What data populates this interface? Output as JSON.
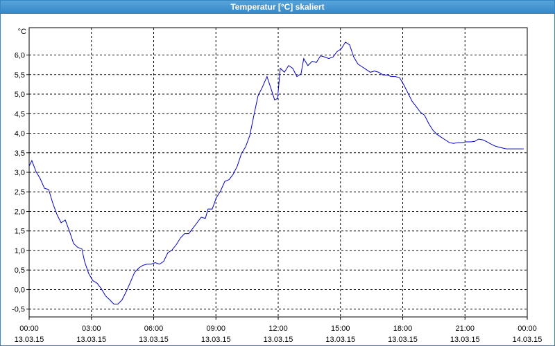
{
  "chart_data": {
    "type": "line",
    "title": "Temperatur [°C] skaliert",
    "y_unit": "°C",
    "color": "#0000c8",
    "grid": true,
    "x": [
      0,
      0.13,
      0.33,
      0.53,
      0.74,
      0.94,
      1.14,
      1.34,
      1.54,
      1.74,
      1.94,
      2.14,
      2.34,
      2.54,
      2.67,
      2.87,
      3.07,
      3.28,
      3.48,
      3.68,
      3.88,
      4.08,
      4.28,
      4.48,
      4.68,
      4.88,
      5.08,
      5.28,
      5.48,
      5.68,
      5.88,
      6.08,
      6.28,
      6.48,
      6.68,
      6.88,
      7.09,
      7.29,
      7.49,
      7.69,
      7.89,
      8.09,
      8.29,
      8.49,
      8.62,
      8.82,
      9.02,
      9.22,
      9.43,
      9.63,
      9.83,
      10.03,
      10.23,
      10.43,
      10.63,
      10.83,
      11.03,
      11.23,
      11.46,
      11.66,
      11.83,
      11.97,
      12.1,
      12.3,
      12.5,
      12.7,
      12.9,
      13.1,
      13.23,
      13.43,
      13.64,
      13.84,
      14.04,
      14.24,
      14.44,
      14.64,
      14.84,
      15.04,
      15.24,
      15.44,
      15.64,
      15.84,
      16.04,
      16.24,
      16.44,
      16.64,
      16.84,
      17.05,
      17.25,
      17.45,
      17.65,
      17.85,
      18.05,
      18.25,
      18.45,
      18.65,
      18.85,
      19.05,
      19.25,
      19.45,
      19.65,
      19.85,
      20.05,
      20.25,
      20.45,
      20.66,
      20.86,
      21.06,
      21.26,
      21.46,
      21.66,
      21.86,
      22.06,
      22.26,
      22.46,
      22.66,
      22.99,
      23.33,
      23.83
    ],
    "values": [
      3.16,
      3.3,
      3.02,
      2.84,
      2.59,
      2.56,
      2.21,
      1.92,
      1.71,
      1.78,
      1.5,
      1.18,
      1.08,
      1.04,
      0.72,
      0.41,
      0.23,
      0.16,
      0.02,
      -0.16,
      -0.26,
      -0.37,
      -0.37,
      -0.26,
      -0.05,
      0.19,
      0.44,
      0.55,
      0.62,
      0.65,
      0.65,
      0.69,
      0.65,
      0.72,
      0.94,
      1.01,
      1.15,
      1.32,
      1.43,
      1.43,
      1.57,
      1.71,
      1.85,
      1.82,
      2.06,
      2.06,
      2.35,
      2.52,
      2.77,
      2.81,
      2.95,
      3.16,
      3.48,
      3.65,
      3.94,
      4.46,
      4.96,
      5.17,
      5.45,
      5.13,
      4.85,
      4.89,
      5.66,
      5.56,
      5.73,
      5.66,
      5.45,
      5.52,
      5.91,
      5.73,
      5.84,
      5.81,
      5.98,
      5.95,
      5.91,
      5.95,
      6.09,
      6.16,
      6.33,
      6.26,
      5.95,
      5.77,
      5.7,
      5.63,
      5.56,
      5.59,
      5.56,
      5.49,
      5.49,
      5.45,
      5.45,
      5.42,
      5.24,
      5.03,
      4.82,
      4.68,
      4.54,
      4.46,
      4.25,
      4.08,
      3.97,
      3.9,
      3.83,
      3.76,
      3.74,
      3.76,
      3.76,
      3.78,
      3.78,
      3.79,
      3.85,
      3.83,
      3.78,
      3.72,
      3.67,
      3.64,
      3.6,
      3.6,
      3.6
    ],
    "xlim": [
      0,
      24
    ],
    "xticks": [
      {
        "value": 0,
        "label": "00:00\n13.03.15"
      },
      {
        "value": 3,
        "label": "03:00\n13.03.15"
      },
      {
        "value": 6,
        "label": "06:00\n13.03.15"
      },
      {
        "value": 9,
        "label": "09:00\n13.03.15"
      },
      {
        "value": 12,
        "label": "12:00\n13.03.15"
      },
      {
        "value": 15,
        "label": "15:00\n13.03.15"
      },
      {
        "value": 18,
        "label": "18:00\n13.03.15"
      },
      {
        "value": 21,
        "label": "21:00\n13.03.15"
      },
      {
        "value": 24,
        "label": "00:00\n14.03.15"
      }
    ],
    "ylim": [
      -0.7,
      6.7
    ],
    "yticks": [
      {
        "value": -0.5,
        "label": "-0,5"
      },
      {
        "value": 0,
        "label": "0,0"
      },
      {
        "value": 0.5,
        "label": "0,5"
      },
      {
        "value": 1,
        "label": "1,0"
      },
      {
        "value": 1.5,
        "label": "1,5"
      },
      {
        "value": 2,
        "label": "2,0"
      },
      {
        "value": 2.5,
        "label": "2,5"
      },
      {
        "value": 3,
        "label": "3,0"
      },
      {
        "value": 3.5,
        "label": "3,5"
      },
      {
        "value": 4,
        "label": "4,0"
      },
      {
        "value": 4.5,
        "label": "4,5"
      },
      {
        "value": 5,
        "label": "5,0"
      },
      {
        "value": 5.5,
        "label": "5,5"
      },
      {
        "value": 6,
        "label": "6,0"
      }
    ]
  }
}
